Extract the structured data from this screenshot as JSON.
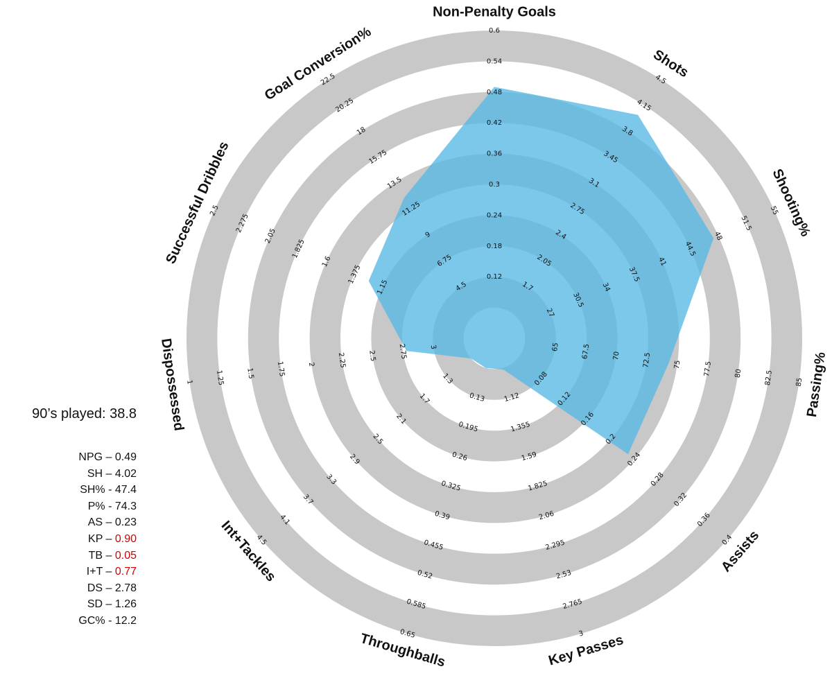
{
  "chart_data": {
    "type": "radar",
    "fill_color": "#57b8e6",
    "ring_color": "#c8c8c8",
    "highlight_color": "#d40000",
    "axes": [
      {
        "label": "Non-Penalty Goals",
        "ticks": [
          "0.12",
          "0.18",
          "0.24",
          "0.3",
          "0.36",
          "0.42",
          "0.48",
          "0.54",
          "0.6"
        ],
        "min": 0.06,
        "max": 0.6,
        "value": 0.49
      },
      {
        "label": "Shots",
        "ticks": [
          "1.7",
          "2.05",
          "2.4",
          "2.75",
          "3.1",
          "3.45",
          "3.8",
          "4.15",
          "4.5"
        ],
        "min": 1.35,
        "max": 4.5,
        "value": 4.02
      },
      {
        "label": "Shooting%",
        "ticks": [
          "27",
          "30.5",
          "34",
          "37.5",
          "41",
          "44.5",
          "48",
          "51.5",
          "55"
        ],
        "min": 23.5,
        "max": 55,
        "value": 47.4
      },
      {
        "label": "Passing%",
        "ticks": [
          "65",
          "67.5",
          "70",
          "72.5",
          "75",
          "77.5",
          "80",
          "82.5",
          "85"
        ],
        "min": 62.5,
        "max": 85,
        "value": 74.3
      },
      {
        "label": "Assists",
        "ticks": [
          "0.08",
          "0.12",
          "0.16",
          "0.2",
          "0.24",
          "0.28",
          "0.32",
          "0.36",
          "0.4"
        ],
        "min": 0.04,
        "max": 0.4,
        "value": 0.23
      },
      {
        "label": "Key Passes",
        "ticks": [
          "1.12",
          "1.355",
          "1.59",
          "1.825",
          "2.06",
          "2.295",
          "2.53",
          "2.765",
          "3"
        ],
        "min": 0.885,
        "max": 3,
        "value": 0.9
      },
      {
        "label": "Throughballs",
        "ticks": [
          "0.13",
          "0.195",
          "0.26",
          "0.325",
          "0.39",
          "0.455",
          "0.52",
          "0.585",
          "0.65"
        ],
        "min": 0.065,
        "max": 0.65,
        "value": 0.05
      },
      {
        "label": "Int+Tackles",
        "ticks": [
          "1.3",
          "1.7",
          "2.1",
          "2.5",
          "2.9",
          "3.3",
          "3.7",
          "4.1",
          "4.5"
        ],
        "min": 0.9,
        "max": 4.5,
        "value": 0.77
      },
      {
        "label": "Dispossessed",
        "ticks": [
          "3",
          "2.75",
          "2.5",
          "2.25",
          "2",
          "1.75",
          "1.5",
          "1.25",
          "1"
        ],
        "min": 3.25,
        "max": 1,
        "value": 2.78
      },
      {
        "label": "Successful Dribbles",
        "ticks": [
          "1.15",
          "1.375",
          "1.6",
          "1.825",
          "2.05",
          "2.275",
          "2.5"
        ],
        "min": 0.475,
        "max": 2.5,
        "value": 1.26
      },
      {
        "label": "Goal Conversion%",
        "ticks": [
          "4.5",
          "6.75",
          "9",
          "11.25",
          "13.5",
          "15.75",
          "18",
          "20.25",
          "22.5"
        ],
        "min": 2.25,
        "max": 22.5,
        "value": 12.2
      }
    ]
  },
  "panel": {
    "played": "90’s played: 38.8",
    "stats": [
      {
        "abbr": "NPG",
        "sep": " – ",
        "value": "0.49",
        "highlight": false
      },
      {
        "abbr": "SH",
        "sep": " – ",
        "value": "4.02",
        "highlight": false
      },
      {
        "abbr": "SH%",
        "sep": " - ",
        "value": "47.4",
        "highlight": false
      },
      {
        "abbr": "P%",
        "sep": " - ",
        "value": "74.3",
        "highlight": false
      },
      {
        "abbr": "AS",
        "sep": " – ",
        "value": "0.23",
        "highlight": false
      },
      {
        "abbr": "KP",
        "sep": " – ",
        "value": "0.90",
        "highlight": true
      },
      {
        "abbr": "TB",
        "sep": " – ",
        "value": "0.05",
        "highlight": true
      },
      {
        "abbr": "I+T",
        "sep": " – ",
        "value": "0.77",
        "highlight": true
      },
      {
        "abbr": "DS",
        "sep": " – ",
        "value": "2.78",
        "highlight": false
      },
      {
        "abbr": "SD",
        "sep": " – ",
        "value": "1.26",
        "highlight": false
      },
      {
        "abbr": "GC%",
        "sep": " - ",
        "value": "12.2",
        "highlight": false
      }
    ]
  }
}
